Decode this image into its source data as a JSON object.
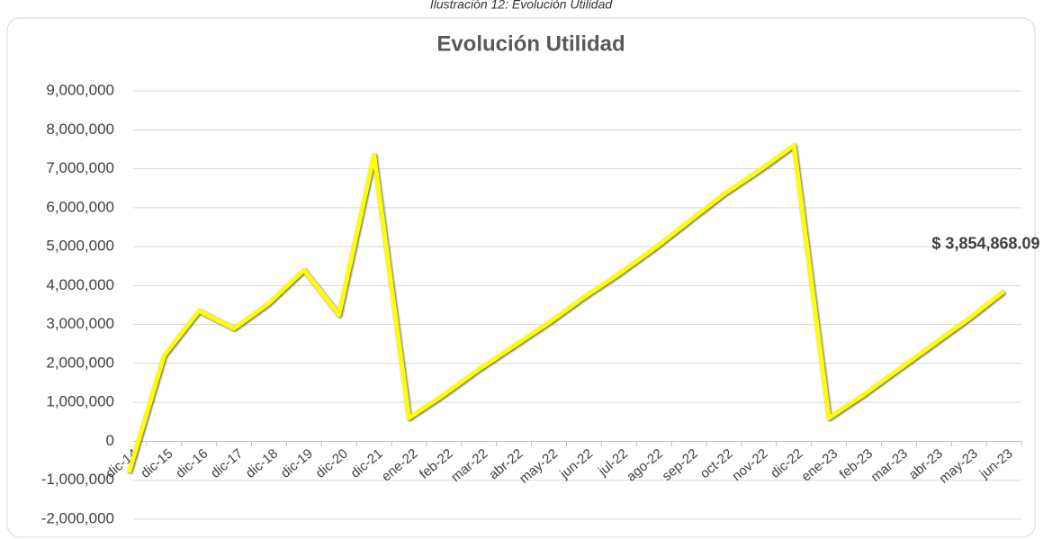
{
  "chart_data": {
    "type": "line",
    "caption": "Ilustración 12: Evolución Utilidad",
    "title": "Evolución Utilidad",
    "categories": [
      "dic-14",
      "dic-15",
      "dic-16",
      "dic-17",
      "dic-18",
      "dic-19",
      "dic-20",
      "dic-21",
      "ene-22",
      "feb-22",
      "mar-22",
      "abr-22",
      "may-22",
      "jun-22",
      "jul-22",
      "ago-22",
      "sep-22",
      "oct-22",
      "nov-22",
      "dic-22",
      "ene-23",
      "feb-23",
      "mar-23",
      "abr-23",
      "may-23",
      "jun-23"
    ],
    "series": [
      {
        "name": "Utilidad",
        "color": "#ffff00",
        "values": [
          -800000,
          2200000,
          3350000,
          2900000,
          3550000,
          4400000,
          3250000,
          7350000,
          600000,
          1200000,
          1850000,
          2450000,
          3050000,
          3700000,
          4300000,
          4950000,
          5650000,
          6350000,
          6950000,
          7600000,
          600000,
          1200000,
          1850000,
          2500000,
          3150000,
          3854868.09
        ],
        "value_labels": [
          null,
          null,
          null,
          null,
          null,
          null,
          null,
          null,
          null,
          null,
          null,
          null,
          null,
          null,
          null,
          null,
          null,
          null,
          null,
          null,
          null,
          null,
          null,
          null,
          null,
          "$ 3,854,868.09"
        ]
      }
    ],
    "ylim": [
      -2000000,
      9000000
    ],
    "yticks": [
      {
        "value": -2000000,
        "label": "-2,000,000"
      },
      {
        "value": -1000000,
        "label": "-1,000,000"
      },
      0,
      {
        "value": 1000000,
        "label": "1,000,000"
      },
      {
        "value": 2000000,
        "label": "2,000,000"
      },
      {
        "value": 3000000,
        "label": "3,000,000"
      },
      {
        "value": 4000000,
        "label": "4,000,000"
      },
      {
        "value": 5000000,
        "label": "5,000,000"
      },
      {
        "value": 6000000,
        "label": "6,000,000"
      },
      {
        "value": 7000000,
        "label": "7,000,000"
      },
      {
        "value": 8000000,
        "label": "8,000,000"
      },
      {
        "value": 9000000,
        "label": "9,000,000"
      }
    ],
    "grid": true
  }
}
